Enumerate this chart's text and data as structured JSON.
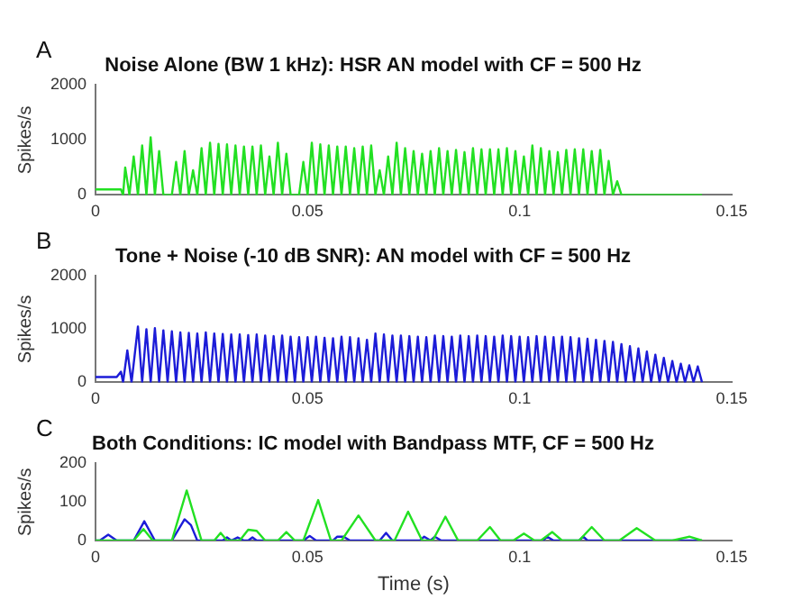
{
  "chart_data": [
    {
      "type": "line",
      "title": "Noise Alone (BW 1 kHz): HSR AN model with CF = 500 Hz",
      "ylabel": "Spikes/s",
      "annotations": [
        "A"
      ],
      "xlim": [
        0,
        0.15
      ],
      "xticks": [
        0,
        0.05,
        0.1,
        0.15
      ],
      "ylim": [
        0,
        2000
      ],
      "yticks": [
        0,
        1000,
        2000
      ],
      "grid": false,
      "legend": false,
      "marker": "none",
      "series": [
        {
          "color": "#22e022",
          "x": [
            0,
            0.006,
            0.0065,
            0.007,
            0.008,
            0.009,
            0.01,
            0.011,
            0.012,
            0.013,
            0.014,
            0.015,
            0.016,
            0.017,
            0.018,
            0.019,
            0.02,
            0.021,
            0.022,
            0.023,
            0.024,
            0.025,
            0.026,
            0.027,
            0.028,
            0.029,
            0.03,
            0.031,
            0.032,
            0.033,
            0.034,
            0.035,
            0.036,
            0.037,
            0.038,
            0.039,
            0.04,
            0.041,
            0.042,
            0.043,
            0.044,
            0.045,
            0.046,
            0.047,
            0.048,
            0.049,
            0.05,
            0.051,
            0.052,
            0.053,
            0.054,
            0.055,
            0.056,
            0.057,
            0.058,
            0.059,
            0.06,
            0.061,
            0.062,
            0.063,
            0.064,
            0.065,
            0.066,
            0.067,
            0.068,
            0.069,
            0.07,
            0.071,
            0.072,
            0.073,
            0.074,
            0.075,
            0.076,
            0.077,
            0.078,
            0.079,
            0.08,
            0.081,
            0.082,
            0.083,
            0.084,
            0.085,
            0.086,
            0.087,
            0.088,
            0.089,
            0.09,
            0.091,
            0.092,
            0.093,
            0.094,
            0.095,
            0.096,
            0.097,
            0.098,
            0.099,
            0.1,
            0.101,
            0.102,
            0.103,
            0.104,
            0.105,
            0.106,
            0.107,
            0.108,
            0.109,
            0.11,
            0.111,
            0.112,
            0.113,
            0.114,
            0.115,
            0.116,
            0.117,
            0.118,
            0.119,
            0.12,
            0.121,
            0.122,
            0.123,
            0.124,
            0.143
          ],
          "values": [
            100,
            100,
            0,
            500,
            0,
            700,
            0,
            900,
            0,
            1050,
            0,
            800,
            0,
            0,
            0,
            600,
            0,
            800,
            0,
            450,
            0,
            850,
            0,
            950,
            0,
            930,
            0,
            920,
            0,
            900,
            0,
            880,
            0,
            880,
            0,
            900,
            0,
            700,
            0,
            950,
            0,
            750,
            0,
            0,
            0,
            600,
            0,
            950,
            0,
            920,
            0,
            900,
            0,
            880,
            0,
            880,
            0,
            850,
            0,
            880,
            0,
            900,
            0,
            450,
            0,
            700,
            0,
            950,
            0,
            850,
            0,
            800,
            0,
            750,
            0,
            800,
            0,
            850,
            0,
            800,
            0,
            820,
            0,
            780,
            0,
            850,
            0,
            830,
            0,
            830,
            0,
            830,
            0,
            850,
            0,
            800,
            0,
            700,
            0,
            900,
            0,
            850,
            0,
            800,
            0,
            780,
            0,
            820,
            0,
            830,
            0,
            830,
            0,
            800,
            0,
            820,
            0,
            620,
            0,
            250,
            0,
            0
          ]
        }
      ]
    },
    {
      "type": "line",
      "title": "Tone + Noise (-10 dB SNR): AN model with CF = 500 Hz",
      "ylabel": "Spikes/s",
      "annotations": [
        "B"
      ],
      "xlim": [
        0,
        0.15
      ],
      "xticks": [
        0,
        0.05,
        0.1,
        0.15
      ],
      "ylim": [
        0,
        2000
      ],
      "yticks": [
        0,
        1000,
        2000
      ],
      "grid": false,
      "legend": false,
      "marker": "none",
      "series": [
        {
          "color": "#1c1cd8",
          "x": [
            0,
            0.005,
            0.006,
            0.0065,
            0.0075,
            0.0085,
            0.01,
            0.011,
            0.012,
            0.013,
            0.014,
            0.015,
            0.016,
            0.017,
            0.018,
            0.019,
            0.02,
            0.021,
            0.022,
            0.023,
            0.024,
            0.025,
            0.026,
            0.027,
            0.028,
            0.029,
            0.03,
            0.031,
            0.032,
            0.033,
            0.034,
            0.035,
            0.036,
            0.037,
            0.038,
            0.039,
            0.04,
            0.041,
            0.042,
            0.043,
            0.044,
            0.045,
            0.046,
            0.047,
            0.048,
            0.049,
            0.05,
            0.051,
            0.052,
            0.053,
            0.054,
            0.055,
            0.056,
            0.057,
            0.058,
            0.059,
            0.06,
            0.061,
            0.062,
            0.063,
            0.064,
            0.065,
            0.066,
            0.067,
            0.068,
            0.069,
            0.07,
            0.071,
            0.072,
            0.073,
            0.074,
            0.075,
            0.076,
            0.077,
            0.078,
            0.079,
            0.08,
            0.081,
            0.082,
            0.083,
            0.084,
            0.085,
            0.086,
            0.087,
            0.088,
            0.089,
            0.09,
            0.091,
            0.092,
            0.093,
            0.094,
            0.095,
            0.096,
            0.097,
            0.098,
            0.099,
            0.1,
            0.101,
            0.102,
            0.103,
            0.104,
            0.105,
            0.106,
            0.107,
            0.108,
            0.109,
            0.11,
            0.111,
            0.112,
            0.113,
            0.114,
            0.115,
            0.116,
            0.117,
            0.118,
            0.119,
            0.12,
            0.121,
            0.122,
            0.123,
            0.124,
            0.125,
            0.126,
            0.127,
            0.128,
            0.129,
            0.13,
            0.131,
            0.132,
            0.133,
            0.134,
            0.135,
            0.136,
            0.137,
            0.138,
            0.139,
            0.14,
            0.141,
            0.142,
            0.143
          ],
          "values": [
            100,
            100,
            200,
            0,
            600,
            0,
            1050,
            0,
            1000,
            0,
            1020,
            0,
            980,
            0,
            960,
            0,
            940,
            0,
            930,
            0,
            920,
            0,
            940,
            0,
            920,
            0,
            910,
            0,
            900,
            0,
            900,
            0,
            890,
            0,
            900,
            0,
            880,
            0,
            870,
            0,
            880,
            0,
            860,
            0,
            850,
            0,
            850,
            0,
            860,
            0,
            840,
            0,
            830,
            0,
            860,
            0,
            850,
            0,
            830,
            0,
            800,
            0,
            920,
            0,
            900,
            0,
            880,
            0,
            880,
            0,
            870,
            0,
            860,
            0,
            850,
            0,
            880,
            0,
            870,
            0,
            860,
            0,
            880,
            0,
            870,
            0,
            880,
            0,
            870,
            0,
            860,
            0,
            880,
            0,
            870,
            0,
            860,
            0,
            850,
            0,
            870,
            0,
            860,
            0,
            850,
            0,
            860,
            0,
            850,
            0,
            830,
            0,
            820,
            0,
            800,
            0,
            780,
            0,
            760,
            0,
            720,
            0,
            680,
            0,
            640,
            0,
            580,
            0,
            520,
            0,
            460,
            0,
            400,
            0,
            350,
            0,
            320,
            0,
            300,
            0
          ]
        }
      ]
    },
    {
      "type": "line",
      "title": "Both Conditions: IC model with Bandpass MTF, CF = 500 Hz",
      "ylabel": "Spikes/s",
      "xlabel": "Time (s)",
      "annotations": [
        "C"
      ],
      "xlim": [
        0,
        0.15
      ],
      "xticks": [
        0,
        0.05,
        0.1,
        0.15
      ],
      "ylim": [
        0,
        200
      ],
      "yticks": [
        0,
        100,
        200
      ],
      "grid": false,
      "legend": false,
      "marker": "none",
      "series": [
        {
          "color": "#22e022",
          "x": [
            0,
            0.009,
            0.0113,
            0.0135,
            0.018,
            0.0215,
            0.025,
            0.028,
            0.0295,
            0.031,
            0.034,
            0.036,
            0.038,
            0.04,
            0.043,
            0.045,
            0.047,
            0.049,
            0.0525,
            0.0555,
            0.058,
            0.062,
            0.066,
            0.0705,
            0.0737,
            0.077,
            0.0795,
            0.0825,
            0.0855,
            0.09,
            0.093,
            0.0955,
            0.0985,
            0.101,
            0.1035,
            0.105,
            0.1077,
            0.11,
            0.114,
            0.117,
            0.12,
            0.1235,
            0.1276,
            0.132,
            0.136,
            0.14,
            0.143
          ],
          "values": [
            0,
            0,
            30,
            0,
            0,
            130,
            0,
            0,
            20,
            0,
            0,
            28,
            25,
            0,
            0,
            22,
            0,
            0,
            105,
            0,
            0,
            65,
            0,
            0,
            75,
            0,
            0,
            62,
            0,
            0,
            35,
            0,
            0,
            18,
            0,
            0,
            22,
            0,
            0,
            35,
            0,
            0,
            32,
            0,
            0,
            10,
            0
          ]
        },
        {
          "color": "#1c1cd8",
          "x": [
            0,
            0.001,
            0.003,
            0.005,
            0.009,
            0.0115,
            0.014,
            0.018,
            0.021,
            0.0225,
            0.024,
            0.03,
            0.031,
            0.032,
            0.0335,
            0.035,
            0.036,
            0.037,
            0.038,
            0.049,
            0.0505,
            0.052,
            0.056,
            0.057,
            0.0585,
            0.06,
            0.067,
            0.0685,
            0.07,
            0.0765,
            0.0775,
            0.079,
            0.08,
            0.0815,
            0.1055,
            0.1065,
            0.108,
            0.114,
            0.115,
            0.116,
            0.143
          ],
          "values": [
            0,
            0,
            15,
            0,
            0,
            50,
            0,
            0,
            55,
            40,
            0,
            0,
            8,
            0,
            8,
            0,
            0,
            8,
            0,
            0,
            12,
            0,
            0,
            10,
            10,
            0,
            0,
            20,
            0,
            0,
            10,
            0,
            10,
            0,
            0,
            10,
            0,
            0,
            10,
            0,
            0
          ]
        }
      ]
    }
  ]
}
